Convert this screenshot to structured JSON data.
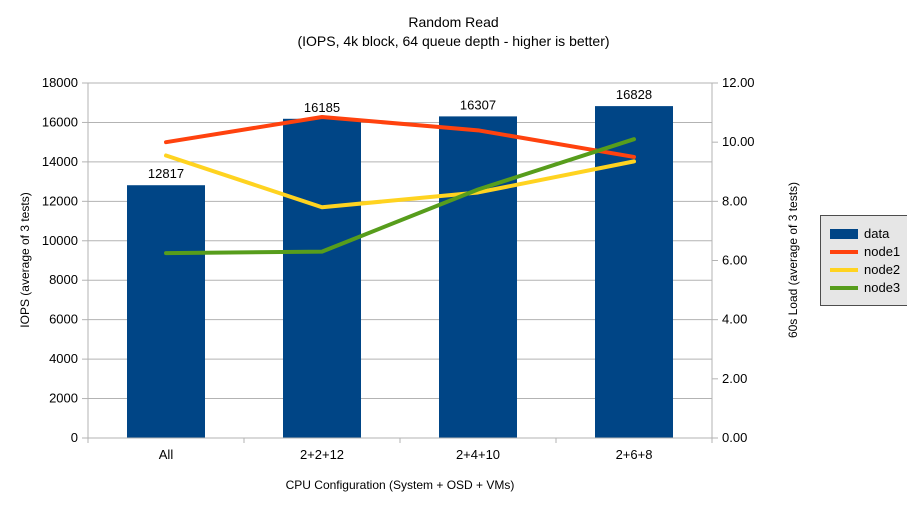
{
  "chart_data": {
    "type": "bar",
    "title": "Random Read",
    "subtitle": "(IOPS, 4k block, 64 queue depth - higher is better)",
    "categories": [
      "All",
      "2+2+12",
      "2+4+10",
      "2+6+8"
    ],
    "series": [
      {
        "name": "data",
        "type": "bar",
        "axis": "left",
        "color": "#004586",
        "values": [
          12817,
          16185,
          16307,
          16828
        ]
      },
      {
        "name": "node1",
        "type": "line",
        "axis": "right",
        "color": "#FF420E",
        "values": [
          10.0,
          10.85,
          10.4,
          9.5
        ]
      },
      {
        "name": "node2",
        "type": "line",
        "axis": "right",
        "color": "#FFD320",
        "values": [
          9.55,
          7.8,
          8.3,
          9.35
        ]
      },
      {
        "name": "node3",
        "type": "line",
        "axis": "right",
        "color": "#579D1C",
        "values": [
          6.25,
          6.3,
          8.4,
          10.1
        ]
      }
    ],
    "bar_labels": [
      "12817",
      "16185",
      "16307",
      "16828"
    ],
    "xlabel": "CPU Configuration (System + OSD + VMs)",
    "ylabel_left": "IOPS (average of 3 tests)",
    "ylabel_right": "60s Load (average of 3 tests)",
    "left_axis": {
      "min": 0,
      "max": 18000,
      "ticks": [
        "0",
        "2000",
        "4000",
        "6000",
        "8000",
        "10000",
        "12000",
        "14000",
        "16000",
        "18000"
      ]
    },
    "right_axis": {
      "min": 0,
      "max": 12,
      "ticks": [
        "0.00",
        "2.00",
        "4.00",
        "6.00",
        "8.00",
        "10.00",
        "12.00"
      ]
    },
    "grid": true,
    "legend_position": "right",
    "colors": {
      "grid": "#b3b3b3",
      "axis": "#b3b3b3",
      "text": "#000000",
      "background": "#ffffff",
      "legend_bg": "#e6e6e6",
      "legend_border": "#4d4d4d"
    }
  }
}
